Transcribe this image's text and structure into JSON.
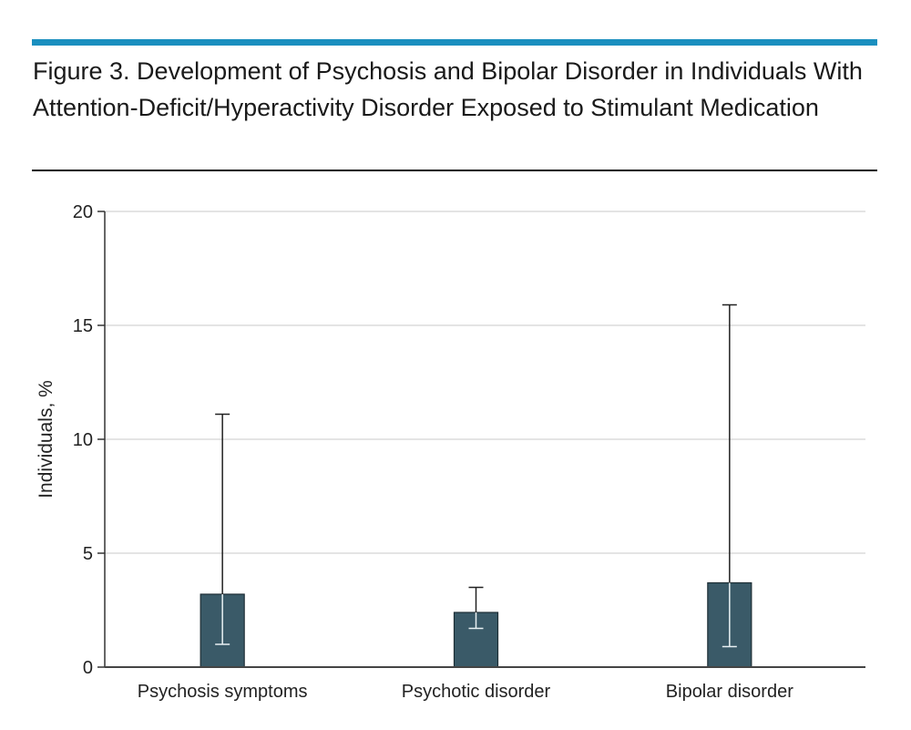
{
  "figure": {
    "title": "Figure 3. Development of Psychosis and Bipolar Disorder in Individuals With Attention-Deficit/Hyperactivity Disorder Exposed to Stimulant Medication",
    "accent_color": "#1a8fbf"
  },
  "chart_data": {
    "type": "bar",
    "title": "",
    "xlabel": "",
    "ylabel": "Individuals, %",
    "ylim": [
      0,
      20
    ],
    "yticks": [
      0,
      5,
      10,
      15,
      20
    ],
    "grid": true,
    "bar_color": "#3a5a68",
    "categories": [
      "Psychosis symptoms",
      "Psychotic disorder",
      "Bipolar disorder"
    ],
    "values": [
      3.2,
      2.4,
      3.7
    ],
    "error_low": [
      1.0,
      1.7,
      0.9
    ],
    "error_high": [
      11.1,
      3.5,
      15.9
    ]
  }
}
